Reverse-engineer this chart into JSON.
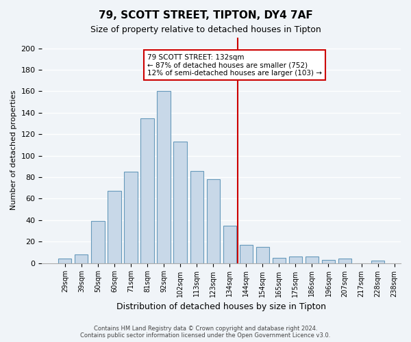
{
  "title": "79, SCOTT STREET, TIPTON, DY4 7AF",
  "subtitle": "Size of property relative to detached houses in Tipton",
  "xlabel": "Distribution of detached houses by size in Tipton",
  "ylabel": "Number of detached properties",
  "bar_color": "#c8d8e8",
  "bar_edge_color": "#6699bb",
  "bin_labels": [
    "29sqm",
    "39sqm",
    "50sqm",
    "60sqm",
    "71sqm",
    "81sqm",
    "92sqm",
    "102sqm",
    "113sqm",
    "123sqm",
    "134sqm",
    "144sqm",
    "154sqm",
    "165sqm",
    "175sqm",
    "186sqm",
    "196sqm",
    "207sqm",
    "217sqm",
    "228sqm",
    "238sqm"
  ],
  "bar_heights": [
    4,
    8,
    39,
    67,
    85,
    135,
    160,
    113,
    86,
    78,
    35,
    17,
    15,
    5,
    6,
    6,
    3,
    4,
    0,
    2
  ],
  "vline_x": 10.5,
  "vline_color": "#cc0000",
  "ylim": [
    0,
    210
  ],
  "yticks": [
    0,
    20,
    40,
    60,
    80,
    100,
    120,
    140,
    160,
    180,
    200
  ],
  "annotation_title": "79 SCOTT STREET: 132sqm",
  "annotation_line1": "← 87% of detached houses are smaller (752)",
  "annotation_line2": "12% of semi-detached houses are larger (103) →",
  "annotation_box_color": "#ffffff",
  "annotation_box_edge": "#cc0000",
  "footer1": "Contains HM Land Registry data © Crown copyright and database right 2024.",
  "footer2": "Contains public sector information licensed under the Open Government Licence v3.0.",
  "background_color": "#f0f4f8",
  "grid_color": "#ffffff"
}
